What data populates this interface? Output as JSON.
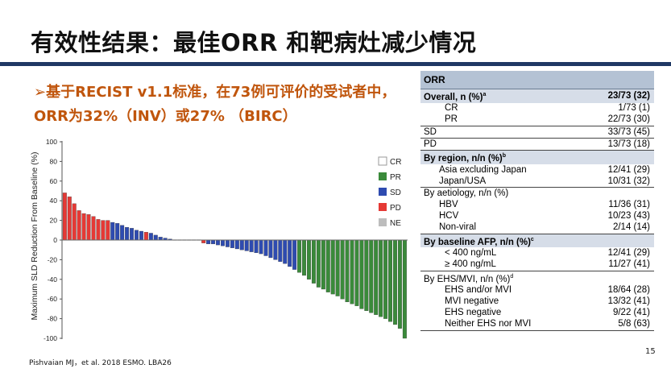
{
  "slide": {
    "title": "有效性结果：最佳ORR 和靶病灶减少情况",
    "bullet_arrow": "➢",
    "bullet_text": "基于RECIST v1.1标准，在73例可评价的受试者中，ORR为32%（INV）或27% （BIRC）",
    "citation": "Pishvaian MJ，et al. 2018 ESMO. LBA26",
    "page_number": "15"
  },
  "colors": {
    "title_rule": "#1f3864",
    "bullet_text": "#c0550c",
    "table_header": "#b4c2d4",
    "table_group": "#d6dde8"
  },
  "table": {
    "header": "ORR",
    "rows": [
      {
        "label": "Overall, n (%)",
        "sup": "a",
        "value": "23/73 (32)",
        "style": "group",
        "indent": 0
      },
      {
        "label": "CR",
        "sup": "",
        "value": "1/73 (1)",
        "style": "",
        "indent": 1
      },
      {
        "label": "PR",
        "sup": "",
        "value": "22/73 (30)",
        "style": "",
        "indent": 1
      },
      {
        "label": "SD",
        "sup": "",
        "value": "33/73 (45)",
        "style": "topline",
        "indent": 0
      },
      {
        "label": "PD",
        "sup": "",
        "value": "13/73 (18)",
        "style": "topline",
        "indent": 0
      },
      {
        "label": "By region, n/n (%)",
        "sup": "b",
        "value": "",
        "style": "group topline",
        "indent": 0
      },
      {
        "label": "Asia excluding Japan",
        "sup": "",
        "value": "12/41 (29)",
        "style": "",
        "indent": 2
      },
      {
        "label": "Japan/USA",
        "sup": "",
        "value": "10/31 (32)",
        "style": "",
        "indent": 2
      },
      {
        "label": "By aetiology, n/n (%)",
        "sup": "",
        "value": "",
        "style": "topline",
        "indent": 0
      },
      {
        "label": "HBV",
        "sup": "",
        "value": "11/36 (31)",
        "style": "",
        "indent": 2
      },
      {
        "label": "HCV",
        "sup": "",
        "value": "10/23 (43)",
        "style": "",
        "indent": 2
      },
      {
        "label": "Non-viral",
        "sup": "",
        "value": "2/14 (14)",
        "style": "",
        "indent": 2
      },
      {
        "label": "By baseline AFP, n/n (%)",
        "sup": "c",
        "value": "",
        "style": "group topline",
        "indent": 0
      },
      {
        "label": "< 400 ng/mL",
        "sup": "",
        "value": "12/41 (29)",
        "style": "",
        "indent": 1
      },
      {
        "label": "≥ 400 ng/mL",
        "sup": "",
        "value": "11/27 (41)",
        "style": "",
        "indent": 1
      },
      {
        "label": "By EHS/MVI, n/n (%)",
        "sup": "d",
        "value": "",
        "style": "topline",
        "indent": 0
      },
      {
        "label": "EHS and/or MVI",
        "sup": "",
        "value": "18/64 (28)",
        "style": "",
        "indent": 1
      },
      {
        "label": "MVI negative",
        "sup": "",
        "value": "13/32 (41)",
        "style": "",
        "indent": 1
      },
      {
        "label": "EHS negative",
        "sup": "",
        "value": "9/22 (41)",
        "style": "",
        "indent": 1
      },
      {
        "label": "Neither EHS nor MVI",
        "sup": "",
        "value": "5/8 (63)",
        "style": "bottomline",
        "indent": 1
      }
    ]
  },
  "chart_data": {
    "type": "bar",
    "ylabel": "Maximum SLD Reduction From Baseline (%)",
    "ylim": [
      -100,
      100
    ],
    "yticks": [
      100,
      80,
      60,
      40,
      20,
      0,
      -20,
      -40,
      -60,
      -80,
      -100
    ],
    "legend": {
      "placement": "top-right",
      "entries": [
        {
          "key": "CR",
          "label": "CR",
          "color": "#ffffff"
        },
        {
          "key": "PR",
          "label": "PR",
          "color": "#3a8a3a"
        },
        {
          "key": "SD",
          "label": "SD",
          "color": "#2e4bb0"
        },
        {
          "key": "PD",
          "label": "PD",
          "color": "#e53935"
        },
        {
          "key": "NE",
          "label": "NE",
          "color": "#bdbdbd"
        }
      ]
    },
    "bars": [
      {
        "value": 48,
        "response": "PD"
      },
      {
        "value": 44,
        "response": "PD"
      },
      {
        "value": 37,
        "response": "PD"
      },
      {
        "value": 30,
        "response": "PD"
      },
      {
        "value": 27,
        "response": "PD"
      },
      {
        "value": 26,
        "response": "PD"
      },
      {
        "value": 24,
        "response": "PD"
      },
      {
        "value": 21,
        "response": "PD"
      },
      {
        "value": 20,
        "response": "PD"
      },
      {
        "value": 20,
        "response": "PD"
      },
      {
        "value": 18,
        "response": "SD"
      },
      {
        "value": 17,
        "response": "SD"
      },
      {
        "value": 15,
        "response": "SD"
      },
      {
        "value": 13,
        "response": "SD"
      },
      {
        "value": 12,
        "response": "SD"
      },
      {
        "value": 10,
        "response": "SD"
      },
      {
        "value": 9,
        "response": "SD"
      },
      {
        "value": 8,
        "response": "PD"
      },
      {
        "value": 7,
        "response": "SD"
      },
      {
        "value": 5,
        "response": "SD"
      },
      {
        "value": 3,
        "response": "SD"
      },
      {
        "value": 2,
        "response": "SD"
      },
      {
        "value": 1,
        "response": "SD"
      },
      {
        "value": 0,
        "response": "SD"
      },
      {
        "value": 0,
        "response": "SD"
      },
      {
        "value": 0,
        "response": "SD"
      },
      {
        "value": 0,
        "response": "SD"
      },
      {
        "value": 0,
        "response": "SD"
      },
      {
        "value": 0,
        "response": "SD"
      },
      {
        "value": -3,
        "response": "PD"
      },
      {
        "value": -4,
        "response": "SD"
      },
      {
        "value": -4,
        "response": "SD"
      },
      {
        "value": -5,
        "response": "SD"
      },
      {
        "value": -6,
        "response": "SD"
      },
      {
        "value": -7,
        "response": "SD"
      },
      {
        "value": -8,
        "response": "SD"
      },
      {
        "value": -9,
        "response": "SD"
      },
      {
        "value": -10,
        "response": "SD"
      },
      {
        "value": -11,
        "response": "SD"
      },
      {
        "value": -12,
        "response": "SD"
      },
      {
        "value": -13,
        "response": "SD"
      },
      {
        "value": -14,
        "response": "SD"
      },
      {
        "value": -16,
        "response": "SD"
      },
      {
        "value": -18,
        "response": "SD"
      },
      {
        "value": -20,
        "response": "SD"
      },
      {
        "value": -22,
        "response": "SD"
      },
      {
        "value": -24,
        "response": "SD"
      },
      {
        "value": -27,
        "response": "SD"
      },
      {
        "value": -30,
        "response": "SD"
      },
      {
        "value": -33,
        "response": "PR"
      },
      {
        "value": -36,
        "response": "PR"
      },
      {
        "value": -40,
        "response": "PR"
      },
      {
        "value": -44,
        "response": "PR"
      },
      {
        "value": -48,
        "response": "PR"
      },
      {
        "value": -50,
        "response": "PR"
      },
      {
        "value": -53,
        "response": "PR"
      },
      {
        "value": -55,
        "response": "PR"
      },
      {
        "value": -57,
        "response": "PR"
      },
      {
        "value": -60,
        "response": "PR"
      },
      {
        "value": -63,
        "response": "PR"
      },
      {
        "value": -65,
        "response": "PR"
      },
      {
        "value": -67,
        "response": "PR"
      },
      {
        "value": -70,
        "response": "PR"
      },
      {
        "value": -72,
        "response": "PR"
      },
      {
        "value": -74,
        "response": "PR"
      },
      {
        "value": -76,
        "response": "PR"
      },
      {
        "value": -78,
        "response": "PR"
      },
      {
        "value": -80,
        "response": "PR"
      },
      {
        "value": -83,
        "response": "PR"
      },
      {
        "value": -86,
        "response": "PR"
      },
      {
        "value": -90,
        "response": "PR"
      },
      {
        "value": -100,
        "response": "PR"
      }
    ]
  }
}
